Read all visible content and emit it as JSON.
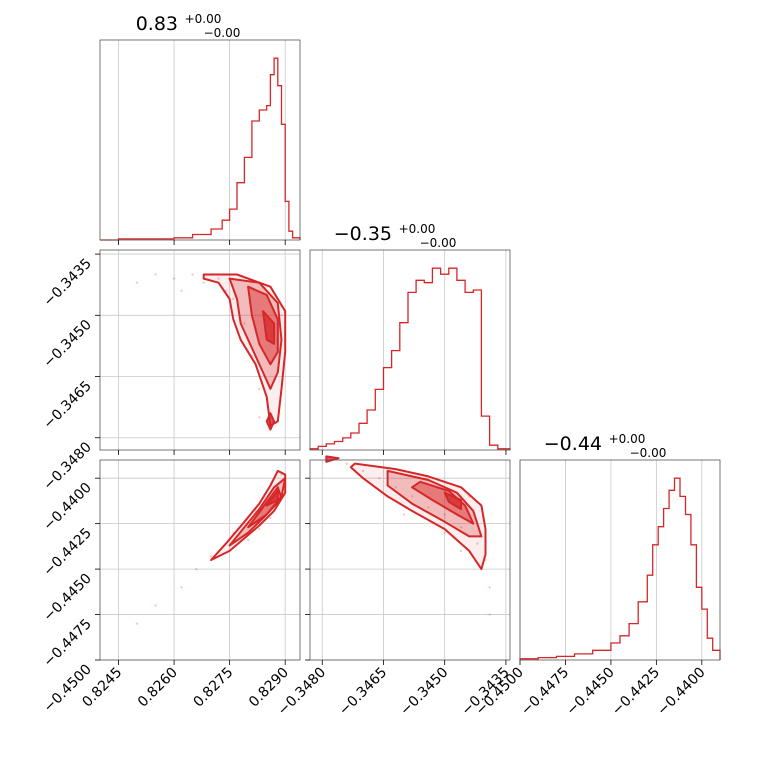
{
  "chart_data": {
    "type": "corner",
    "color": "#d62728",
    "grid": true,
    "params": [
      {
        "title": "0.83",
        "plus": "+0.00",
        "minus": "−0.00",
        "range": [
          0.824,
          0.8294
        ],
        "ticks": [
          0.8245,
          0.826,
          0.8275,
          0.829
        ],
        "tick_labels": [
          "0.8245",
          "0.8260",
          "0.8275",
          "0.8290"
        ]
      },
      {
        "title": "−0.35",
        "plus": "+0.00",
        "minus": "−0.00",
        "range": [
          -0.3483,
          -0.3434
        ],
        "ticks": [
          -0.348,
          -0.3465,
          -0.345,
          -0.3435
        ],
        "tick_labels": [
          "−0.3480",
          "−0.3465",
          "−0.3450",
          "−0.3435"
        ]
      },
      {
        "title": "−0.44",
        "plus": "+0.00",
        "minus": "−0.00",
        "range": [
          -0.45,
          -0.439
        ],
        "ticks": [
          -0.45,
          -0.4475,
          -0.445,
          -0.4425,
          -0.44
        ],
        "tick_labels": [
          "−0.4500",
          "−0.4475",
          "−0.4450",
          "−0.4425",
          "−0.4400"
        ]
      }
    ],
    "histograms": [
      {
        "param": 0,
        "edges": [
          0.824,
          0.8245,
          0.825,
          0.8255,
          0.826,
          0.8265,
          0.827,
          0.8273,
          0.8275,
          0.8277,
          0.8279,
          0.8281,
          0.8283,
          0.8285,
          0.8286,
          0.8287,
          0.8288,
          0.8289,
          0.829,
          0.8291,
          0.8292,
          0.8294
        ],
        "counts": [
          0,
          1,
          1,
          1,
          2,
          5,
          10,
          18,
          28,
          52,
          75,
          108,
          118,
          122,
          150,
          165,
          140,
          105,
          35,
          8,
          2
        ]
      },
      {
        "param": 1,
        "edges": [
          -0.3483,
          -0.3481,
          -0.3479,
          -0.3477,
          -0.3475,
          -0.3473,
          -0.3471,
          -0.3469,
          -0.3467,
          -0.3465,
          -0.3463,
          -0.3461,
          -0.3459,
          -0.3457,
          -0.3455,
          -0.3453,
          -0.3451,
          -0.3449,
          -0.3447,
          -0.3445,
          -0.3443,
          -0.3441,
          -0.3439,
          -0.3437,
          -0.3434
        ],
        "counts": [
          1,
          3,
          5,
          7,
          10,
          14,
          22,
          33,
          50,
          68,
          82,
          105,
          130,
          140,
          138,
          150,
          145,
          150,
          140,
          130,
          132,
          28,
          4,
          1
        ]
      },
      {
        "param": 2,
        "edges": [
          -0.45,
          -0.449,
          -0.448,
          -0.447,
          -0.446,
          -0.445,
          -0.4445,
          -0.444,
          -0.4435,
          -0.443,
          -0.4427,
          -0.4424,
          -0.4421,
          -0.4418,
          -0.4415,
          -0.4412,
          -0.4409,
          -0.4406,
          -0.4403,
          -0.44,
          -0.4397,
          -0.4394,
          -0.439
        ],
        "counts": [
          1,
          2,
          3,
          5,
          8,
          14,
          20,
          30,
          48,
          70,
          95,
          110,
          125,
          140,
          150,
          135,
          120,
          95,
          60,
          42,
          18,
          8
        ]
      }
    ],
    "pairs": [
      {
        "x_param": 0,
        "y_param": 1,
        "samples": [
          [
            0.8255,
            -0.344
          ],
          [
            0.826,
            -0.3441
          ],
          [
            0.8265,
            -0.344
          ],
          [
            0.8268,
            -0.3442
          ],
          [
            0.827,
            -0.344
          ],
          [
            0.8272,
            -0.3441
          ],
          [
            0.8279,
            -0.3452
          ],
          [
            0.8281,
            -0.346
          ],
          [
            0.8283,
            -0.3468
          ],
          [
            0.8285,
            -0.347
          ],
          [
            0.8286,
            -0.3474
          ],
          [
            0.8287,
            -0.3466
          ],
          [
            0.8288,
            -0.3458
          ],
          [
            0.8289,
            -0.345
          ],
          [
            0.8285,
            -0.3445
          ],
          [
            0.8276,
            -0.3446
          ],
          [
            0.8274,
            -0.3444
          ],
          [
            0.8262,
            -0.3444
          ],
          [
            0.825,
            -0.3442
          ],
          [
            0.8283,
            -0.3475
          ]
        ],
        "contours": [
          {
            "fill": 0.08,
            "points": [
              [
                0.8268,
                -0.344
              ],
              [
                0.8277,
                -0.344
              ],
              [
                0.8286,
                -0.3443
              ],
              [
                0.829,
                -0.3449
              ],
              [
                0.829,
                -0.3459
              ],
              [
                0.8289,
                -0.3468
              ],
              [
                0.8288,
                -0.3476
              ],
              [
                0.8286,
                -0.3477
              ],
              [
                0.8285,
                -0.347
              ],
              [
                0.8282,
                -0.3462
              ],
              [
                0.8278,
                -0.3456
              ],
              [
                0.8276,
                -0.3451
              ],
              [
                0.8275,
                -0.3446
              ],
              [
                0.8272,
                -0.3442
              ],
              [
                0.8268,
                -0.3441
              ]
            ]
          },
          {
            "fill": 0.25,
            "points": [
              [
                0.8275,
                -0.3441
              ],
              [
                0.8283,
                -0.3442
              ],
              [
                0.8288,
                -0.3447
              ],
              [
                0.8289,
                -0.3456
              ],
              [
                0.8288,
                -0.3464
              ],
              [
                0.8286,
                -0.3468
              ],
              [
                0.8284,
                -0.3464
              ],
              [
                0.8281,
                -0.3458
              ],
              [
                0.8278,
                -0.3452
              ],
              [
                0.8277,
                -0.3446
              ]
            ]
          },
          {
            "fill": 0.45,
            "points": [
              [
                0.828,
                -0.3443
              ],
              [
                0.8285,
                -0.3445
              ],
              [
                0.8288,
                -0.3451
              ],
              [
                0.8288,
                -0.3459
              ],
              [
                0.8286,
                -0.3462
              ],
              [
                0.8283,
                -0.3457
              ],
              [
                0.8281,
                -0.345
              ]
            ]
          },
          {
            "fill": 0.75,
            "points": [
              [
                0.8284,
                -0.3449
              ],
              [
                0.8287,
                -0.3452
              ],
              [
                0.8287,
                -0.3457
              ],
              [
                0.8285,
                -0.3456
              ]
            ]
          },
          {
            "fill": 0.75,
            "points": [
              [
                0.8286,
                -0.3474
              ],
              [
                0.8287,
                -0.3476
              ],
              [
                0.8286,
                -0.3478
              ],
              [
                0.8285,
                -0.3476
              ]
            ]
          }
        ]
      },
      {
        "x_param": 0,
        "y_param": 2,
        "samples": [
          [
            0.825,
            -0.448
          ],
          [
            0.8255,
            -0.447
          ],
          [
            0.8262,
            -0.446
          ],
          [
            0.8266,
            -0.445
          ],
          [
            0.827,
            -0.4443
          ],
          [
            0.8273,
            -0.4438
          ],
          [
            0.8276,
            -0.443
          ],
          [
            0.8279,
            -0.4424
          ],
          [
            0.8282,
            -0.4418
          ],
          [
            0.8285,
            -0.4412
          ],
          [
            0.8288,
            -0.4405
          ],
          [
            0.8286,
            -0.4422
          ],
          [
            0.8283,
            -0.4428
          ],
          [
            0.828,
            -0.4434
          ],
          [
            0.8275,
            -0.444
          ],
          [
            0.8289,
            -0.4398
          ]
        ],
        "contours": [
          {
            "fill": 0.08,
            "points": [
              [
                0.827,
                -0.4445
              ],
              [
                0.8274,
                -0.4436
              ],
              [
                0.8279,
                -0.4424
              ],
              [
                0.8283,
                -0.4414
              ],
              [
                0.8286,
                -0.4404
              ],
              [
                0.8288,
                -0.4396
              ],
              [
                0.829,
                -0.4398
              ],
              [
                0.829,
                -0.4408
              ],
              [
                0.8287,
                -0.4418
              ],
              [
                0.8283,
                -0.4426
              ],
              [
                0.8279,
                -0.4433
              ],
              [
                0.8275,
                -0.444
              ]
            ]
          },
          {
            "fill": 0.25,
            "points": [
              [
                0.8275,
                -0.4437
              ],
              [
                0.8279,
                -0.4427
              ],
              [
                0.8283,
                -0.4417
              ],
              [
                0.8287,
                -0.4405
              ],
              [
                0.829,
                -0.44
              ],
              [
                0.8289,
                -0.441
              ],
              [
                0.8285,
                -0.442
              ],
              [
                0.828,
                -0.443
              ]
            ]
          },
          {
            "fill": 0.45,
            "points": [
              [
                0.828,
                -0.4427
              ],
              [
                0.8284,
                -0.4416
              ],
              [
                0.8288,
                -0.4405
              ],
              [
                0.8289,
                -0.4411
              ],
              [
                0.8285,
                -0.442
              ]
            ]
          },
          {
            "fill": 0.75,
            "points": [
              [
                0.8285,
                -0.4415
              ],
              [
                0.8288,
                -0.4407
              ],
              [
                0.8288,
                -0.4412
              ]
            ]
          }
        ]
      },
      {
        "x_param": 1,
        "y_param": 2,
        "samples": [
          [
            -0.3478,
            -0.4389
          ],
          [
            -0.3474,
            -0.4392
          ],
          [
            -0.347,
            -0.4396
          ],
          [
            -0.3466,
            -0.44
          ],
          [
            -0.3462,
            -0.4405
          ],
          [
            -0.3458,
            -0.441
          ],
          [
            -0.3454,
            -0.4416
          ],
          [
            -0.345,
            -0.442
          ],
          [
            -0.3446,
            -0.4427
          ],
          [
            -0.3442,
            -0.4436
          ],
          [
            -0.344,
            -0.4445
          ],
          [
            -0.3439,
            -0.446
          ],
          [
            -0.3439,
            -0.4475
          ],
          [
            -0.3446,
            -0.444
          ],
          [
            -0.345,
            -0.443
          ],
          [
            -0.346,
            -0.442
          ],
          [
            -0.3444,
            -0.441
          ],
          [
            -0.345,
            -0.4402
          ]
        ],
        "contours": [
          {
            "fill": 0.08,
            "points": [
              [
                -0.3472,
                -0.4392
              ],
              [
                -0.3462,
                -0.4395
              ],
              [
                -0.3454,
                -0.4399
              ],
              [
                -0.3446,
                -0.4405
              ],
              [
                -0.3441,
                -0.4415
              ],
              [
                -0.344,
                -0.4428
              ],
              [
                -0.344,
                -0.4442
              ],
              [
                -0.3441,
                -0.445
              ],
              [
                -0.3444,
                -0.444
              ],
              [
                -0.345,
                -0.4428
              ],
              [
                -0.3458,
                -0.4418
              ],
              [
                -0.3464,
                -0.441
              ],
              [
                -0.347,
                -0.44
              ],
              [
                -0.3473,
                -0.4394
              ]
            ]
          },
          {
            "fill": 0.25,
            "points": [
              [
                -0.3464,
                -0.4396
              ],
              [
                -0.3454,
                -0.4401
              ],
              [
                -0.3447,
                -0.4408
              ],
              [
                -0.3443,
                -0.4418
              ],
              [
                -0.3441,
                -0.4432
              ],
              [
                -0.3444,
                -0.4432
              ],
              [
                -0.345,
                -0.4424
              ],
              [
                -0.3458,
                -0.4414
              ],
              [
                -0.3464,
                -0.4404
              ]
            ]
          },
          {
            "fill": 0.45,
            "points": [
              [
                -0.3456,
                -0.4402
              ],
              [
                -0.3449,
                -0.4407
              ],
              [
                -0.3445,
                -0.4415
              ],
              [
                -0.3443,
                -0.4425
              ],
              [
                -0.3447,
                -0.442
              ],
              [
                -0.3453,
                -0.4412
              ],
              [
                -0.3458,
                -0.4405
              ]
            ]
          },
          {
            "fill": 0.75,
            "points": [
              [
                -0.345,
                -0.4408
              ],
              [
                -0.3446,
                -0.4412
              ],
              [
                -0.3446,
                -0.4417
              ],
              [
                -0.3449,
                -0.4413
              ]
            ]
          },
          {
            "fill": 0.75,
            "points": [
              [
                -0.3479,
                -0.4388
              ],
              [
                -0.3476,
                -0.4389
              ],
              [
                -0.3479,
                -0.4391
              ]
            ]
          }
        ]
      }
    ]
  }
}
